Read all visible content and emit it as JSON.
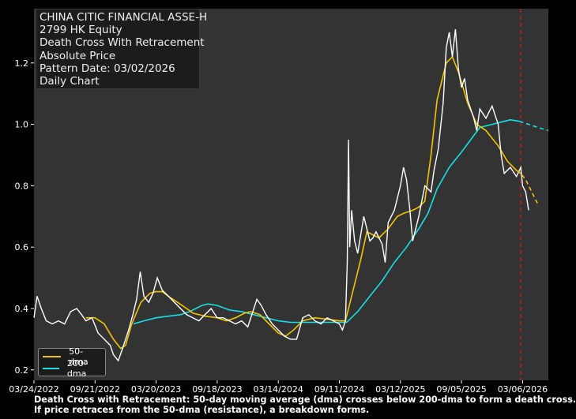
{
  "info": {
    "lines": [
      "CHINA CITIC FINANCIAL ASSE-H",
      "2799 HK Equity",
      "Death Cross With Retracement",
      "Absolute Price",
      "Pattern Date: 03/02/2026",
      "Daily Chart"
    ]
  },
  "legend": {
    "items": [
      {
        "label": "50-dma",
        "color": "#f5c400"
      },
      {
        "label": "200-dma",
        "color": "#17e0e6"
      }
    ]
  },
  "caption": {
    "line1": "Death Cross with Retracement: 50-day moving average (dma) crosses below 200-dma to form a death cross.",
    "line2": "If price retraces from the 50-dma (resistance), a breakdown forms."
  },
  "colors": {
    "background": "#000000",
    "plot_bg": "#333333",
    "price": "#ffffff",
    "dma50": "#f5c400",
    "dma200": "#17e0e6",
    "pattern_line": "#b22222"
  },
  "chart_data": {
    "type": "line",
    "title": "CHINA CITIC FINANCIAL ASSE-H — Death Cross With Retracement",
    "xlabel": "",
    "ylabel": "",
    "ylim": [
      0.17,
      1.37
    ],
    "yticks": [
      0.2,
      0.4,
      0.6,
      0.8,
      1.0,
      1.2
    ],
    "xticks": [
      "03/24/2022",
      "09/21/2022",
      "03/20/2023",
      "09/18/2023",
      "03/14/2024",
      "09/11/2024",
      "03/12/2025",
      "09/05/2025",
      "03/06/2026"
    ],
    "x_range_ticks": [
      0,
      8.42
    ],
    "grid": false,
    "legend_position": "lower left",
    "pattern_date_tick_pos": 7.97,
    "series": [
      {
        "name": "Price",
        "points": [
          [
            0,
            0.37
          ],
          [
            0.05,
            0.44
          ],
          [
            0.12,
            0.4
          ],
          [
            0.2,
            0.36
          ],
          [
            0.3,
            0.35
          ],
          [
            0.4,
            0.36
          ],
          [
            0.5,
            0.35
          ],
          [
            0.6,
            0.39
          ],
          [
            0.7,
            0.4
          ],
          [
            0.78,
            0.38
          ],
          [
            0.85,
            0.36
          ],
          [
            0.95,
            0.37
          ],
          [
            1.05,
            0.32
          ],
          [
            1.15,
            0.3
          ],
          [
            1.25,
            0.28
          ],
          [
            1.3,
            0.25
          ],
          [
            1.38,
            0.23
          ],
          [
            1.45,
            0.27
          ],
          [
            1.55,
            0.33
          ],
          [
            1.62,
            0.38
          ],
          [
            1.68,
            0.43
          ],
          [
            1.74,
            0.52
          ],
          [
            1.8,
            0.44
          ],
          [
            1.88,
            0.42
          ],
          [
            1.95,
            0.45
          ],
          [
            2.02,
            0.5
          ],
          [
            2.1,
            0.46
          ],
          [
            2.2,
            0.44
          ],
          [
            2.3,
            0.42
          ],
          [
            2.4,
            0.4
          ],
          [
            2.5,
            0.38
          ],
          [
            2.6,
            0.37
          ],
          [
            2.7,
            0.36
          ],
          [
            2.8,
            0.38
          ],
          [
            2.9,
            0.4
          ],
          [
            3.0,
            0.37
          ],
          [
            3.1,
            0.37
          ],
          [
            3.2,
            0.36
          ],
          [
            3.3,
            0.35
          ],
          [
            3.4,
            0.36
          ],
          [
            3.5,
            0.34
          ],
          [
            3.6,
            0.4
          ],
          [
            3.65,
            0.43
          ],
          [
            3.72,
            0.41
          ],
          [
            3.8,
            0.38
          ],
          [
            3.9,
            0.35
          ],
          [
            4.0,
            0.33
          ],
          [
            4.1,
            0.31
          ],
          [
            4.2,
            0.3
          ],
          [
            4.3,
            0.3
          ],
          [
            4.4,
            0.37
          ],
          [
            4.5,
            0.38
          ],
          [
            4.6,
            0.36
          ],
          [
            4.7,
            0.35
          ],
          [
            4.8,
            0.37
          ],
          [
            4.9,
            0.36
          ],
          [
            5.0,
            0.35
          ],
          [
            5.05,
            0.33
          ],
          [
            5.1,
            0.36
          ],
          [
            5.13,
            0.55
          ],
          [
            5.15,
            0.95
          ],
          [
            5.17,
            0.6
          ],
          [
            5.2,
            0.72
          ],
          [
            5.25,
            0.62
          ],
          [
            5.3,
            0.58
          ],
          [
            5.4,
            0.7
          ],
          [
            5.45,
            0.66
          ],
          [
            5.5,
            0.62
          ],
          [
            5.55,
            0.63
          ],
          [
            5.6,
            0.65
          ],
          [
            5.7,
            0.61
          ],
          [
            5.75,
            0.55
          ],
          [
            5.8,
            0.68
          ],
          [
            5.9,
            0.72
          ],
          [
            6.0,
            0.8
          ],
          [
            6.05,
            0.86
          ],
          [
            6.1,
            0.82
          ],
          [
            6.15,
            0.73
          ],
          [
            6.2,
            0.62
          ],
          [
            6.3,
            0.7
          ],
          [
            6.4,
            0.8
          ],
          [
            6.5,
            0.78
          ],
          [
            6.55,
            0.85
          ],
          [
            6.62,
            0.92
          ],
          [
            6.7,
            1.07
          ],
          [
            6.75,
            1.25
          ],
          [
            6.8,
            1.3
          ],
          [
            6.85,
            1.22
          ],
          [
            6.9,
            1.31
          ],
          [
            6.95,
            1.18
          ],
          [
            7.0,
            1.12
          ],
          [
            7.05,
            1.15
          ],
          [
            7.1,
            1.08
          ],
          [
            7.2,
            1.02
          ],
          [
            7.25,
            0.98
          ],
          [
            7.3,
            1.05
          ],
          [
            7.4,
            1.02
          ],
          [
            7.5,
            1.06
          ],
          [
            7.6,
            1.0
          ],
          [
            7.65,
            0.9
          ],
          [
            7.7,
            0.84
          ],
          [
            7.8,
            0.86
          ],
          [
            7.9,
            0.83
          ],
          [
            7.97,
            0.86
          ],
          [
            8.0,
            0.8
          ],
          [
            8.05,
            0.78
          ],
          [
            8.1,
            0.72
          ]
        ]
      },
      {
        "name": "50-dma",
        "points": [
          [
            0.85,
            0.37
          ],
          [
            1.0,
            0.37
          ],
          [
            1.15,
            0.35
          ],
          [
            1.3,
            0.3
          ],
          [
            1.42,
            0.27
          ],
          [
            1.5,
            0.28
          ],
          [
            1.6,
            0.35
          ],
          [
            1.75,
            0.42
          ],
          [
            1.9,
            0.45
          ],
          [
            2.0,
            0.455
          ],
          [
            2.1,
            0.455
          ],
          [
            2.2,
            0.44
          ],
          [
            2.35,
            0.42
          ],
          [
            2.5,
            0.4
          ],
          [
            2.6,
            0.385
          ],
          [
            2.8,
            0.375
          ],
          [
            3.0,
            0.37
          ],
          [
            3.15,
            0.36
          ],
          [
            3.3,
            0.37
          ],
          [
            3.45,
            0.385
          ],
          [
            3.55,
            0.39
          ],
          [
            3.7,
            0.38
          ],
          [
            3.85,
            0.35
          ],
          [
            4.0,
            0.32
          ],
          [
            4.12,
            0.31
          ],
          [
            4.25,
            0.33
          ],
          [
            4.4,
            0.36
          ],
          [
            4.6,
            0.37
          ],
          [
            4.8,
            0.365
          ],
          [
            5.0,
            0.36
          ],
          [
            5.1,
            0.36
          ],
          [
            5.2,
            0.44
          ],
          [
            5.35,
            0.56
          ],
          [
            5.45,
            0.65
          ],
          [
            5.55,
            0.64
          ],
          [
            5.65,
            0.63
          ],
          [
            5.8,
            0.66
          ],
          [
            5.95,
            0.7
          ],
          [
            6.05,
            0.71
          ],
          [
            6.2,
            0.72
          ],
          [
            6.3,
            0.73
          ],
          [
            6.4,
            0.75
          ],
          [
            6.5,
            0.9
          ],
          [
            6.6,
            1.08
          ],
          [
            6.75,
            1.2
          ],
          [
            6.85,
            1.22
          ],
          [
            6.95,
            1.17
          ],
          [
            7.1,
            1.07
          ],
          [
            7.25,
            1.0
          ],
          [
            7.4,
            0.98
          ],
          [
            7.6,
            0.93
          ],
          [
            7.75,
            0.88
          ],
          [
            7.9,
            0.85
          ],
          [
            7.97,
            0.84
          ],
          [
            8.05,
            0.82
          ],
          [
            8.15,
            0.78
          ],
          [
            8.25,
            0.74
          ]
        ]
      },
      {
        "name": "200-dma",
        "points": [
          [
            1.63,
            0.35
          ],
          [
            1.8,
            0.36
          ],
          [
            2.0,
            0.37
          ],
          [
            2.2,
            0.375
          ],
          [
            2.4,
            0.38
          ],
          [
            2.55,
            0.39
          ],
          [
            2.75,
            0.41
          ],
          [
            2.85,
            0.415
          ],
          [
            3.0,
            0.41
          ],
          [
            3.2,
            0.395
          ],
          [
            3.4,
            0.39
          ],
          [
            3.6,
            0.38
          ],
          [
            3.8,
            0.37
          ],
          [
            4.0,
            0.36
          ],
          [
            4.2,
            0.355
          ],
          [
            4.4,
            0.355
          ],
          [
            4.6,
            0.355
          ],
          [
            4.8,
            0.355
          ],
          [
            5.0,
            0.355
          ],
          [
            5.12,
            0.355
          ],
          [
            5.3,
            0.39
          ],
          [
            5.5,
            0.44
          ],
          [
            5.7,
            0.49
          ],
          [
            5.9,
            0.55
          ],
          [
            6.1,
            0.6
          ],
          [
            6.3,
            0.66
          ],
          [
            6.45,
            0.71
          ],
          [
            6.6,
            0.79
          ],
          [
            6.8,
            0.86
          ],
          [
            7.0,
            0.91
          ],
          [
            7.15,
            0.95
          ],
          [
            7.3,
            0.99
          ],
          [
            7.5,
            1.0
          ],
          [
            7.7,
            1.01
          ],
          [
            7.8,
            1.015
          ],
          [
            7.95,
            1.01
          ],
          [
            8.1,
            1.0
          ],
          [
            8.25,
            0.99
          ],
          [
            8.42,
            0.98
          ]
        ]
      }
    ]
  }
}
